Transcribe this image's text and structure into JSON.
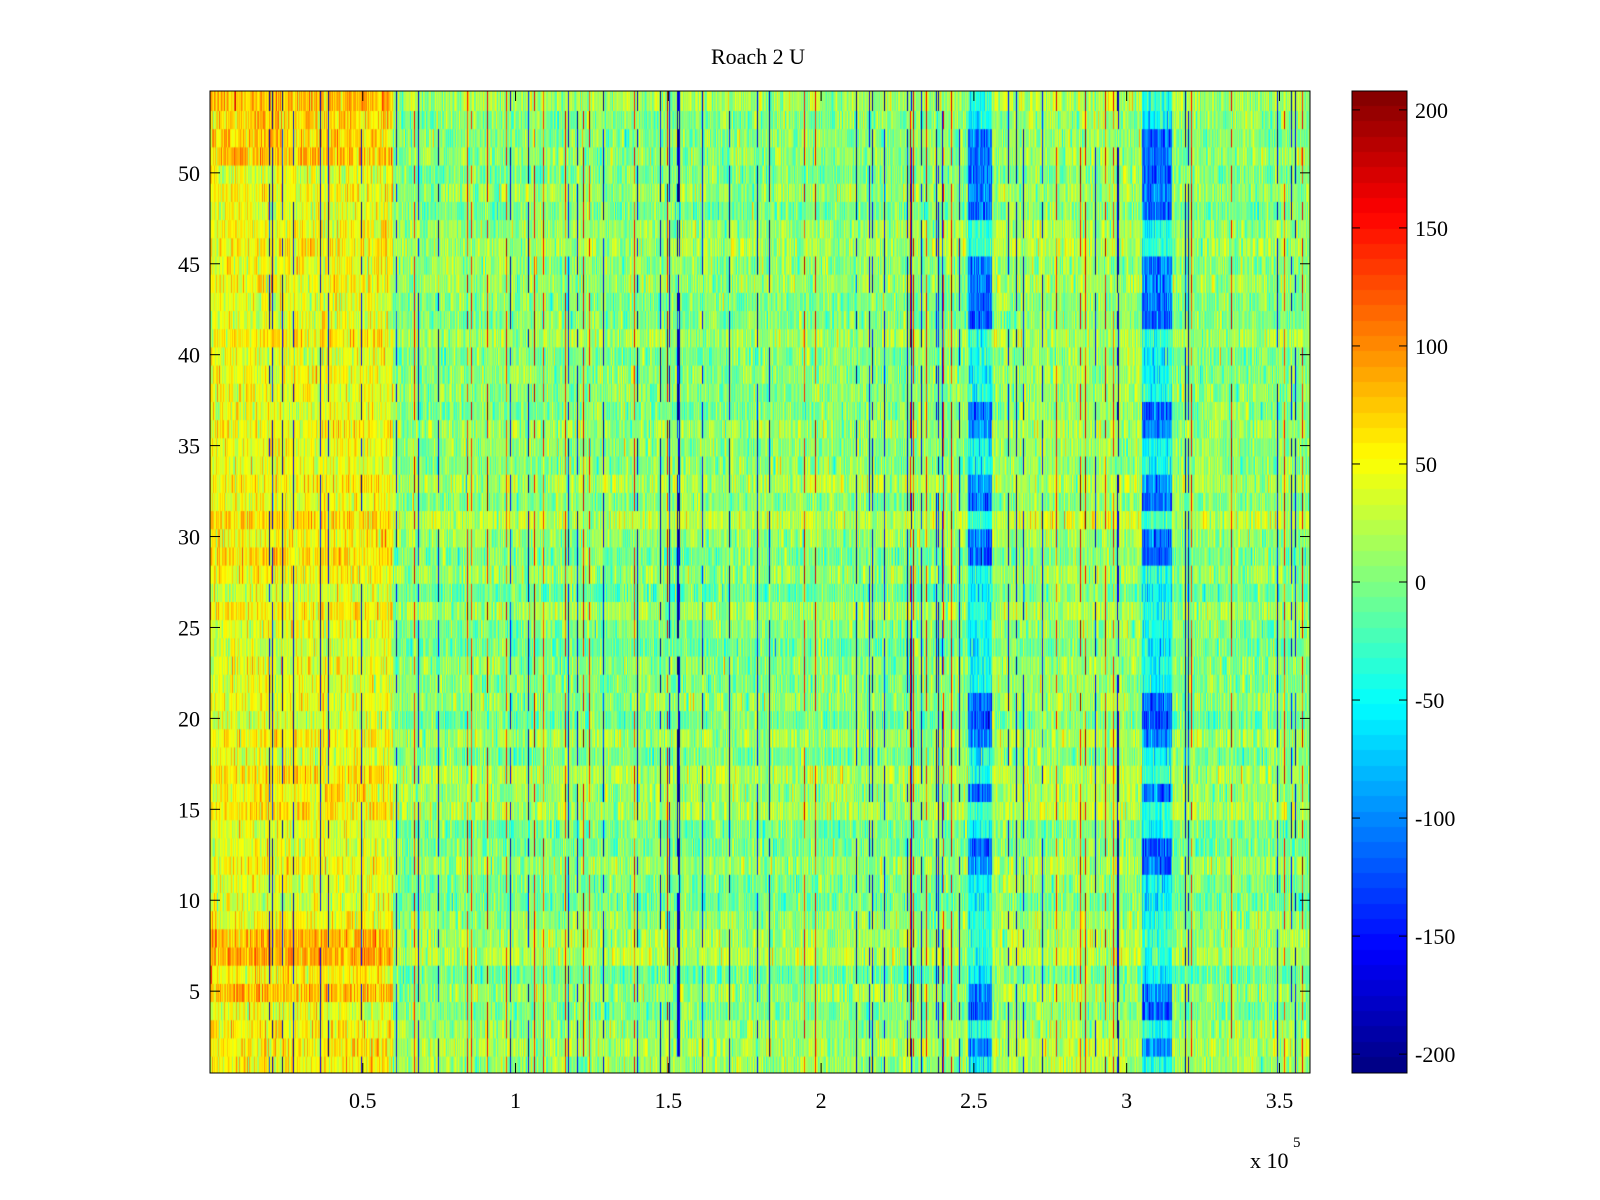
{
  "chart_data": {
    "type": "heatmap",
    "title": "Roach 2 U",
    "xlabel": "",
    "ylabel": "",
    "x_exponent_label": "x 10",
    "x_exponent_power": "5",
    "x_multiplier": 100000,
    "xlim": [
      0,
      3.6
    ],
    "ylim": [
      0.5,
      54.5
    ],
    "x_ticks": [
      {
        "value": 0.5,
        "label": "0.5"
      },
      {
        "value": 1,
        "label": "1"
      },
      {
        "value": 1.5,
        "label": "1.5"
      },
      {
        "value": 2,
        "label": "2"
      },
      {
        "value": 2.5,
        "label": "2.5"
      },
      {
        "value": 3,
        "label": "3"
      },
      {
        "value": 3.5,
        "label": "3.5"
      }
    ],
    "y_ticks": [
      {
        "value": 5,
        "label": "5"
      },
      {
        "value": 10,
        "label": "10"
      },
      {
        "value": 15,
        "label": "15"
      },
      {
        "value": 20,
        "label": "20"
      },
      {
        "value": 25,
        "label": "25"
      },
      {
        "value": 30,
        "label": "30"
      },
      {
        "value": 35,
        "label": "35"
      },
      {
        "value": 40,
        "label": "40"
      },
      {
        "value": 45,
        "label": "45"
      },
      {
        "value": 50,
        "label": "50"
      }
    ],
    "rows": 54,
    "colorbar": {
      "colormap": "jet",
      "clim": [
        -208,
        208
      ],
      "ticks": [
        {
          "value": 200,
          "label": "200"
        },
        {
          "value": 150,
          "label": "150"
        },
        {
          "value": 100,
          "label": "100"
        },
        {
          "value": 50,
          "label": "50"
        },
        {
          "value": 0,
          "label": "0"
        },
        {
          "value": -50,
          "label": "-50"
        },
        {
          "value": -100,
          "label": "-100"
        },
        {
          "value": -150,
          "label": "-150"
        },
        {
          "value": -200,
          "label": "-200"
        }
      ]
    },
    "regions": [
      {
        "x_range": [
          0,
          0.6
        ],
        "mean_value": 45
      },
      {
        "x_range": [
          0.6,
          2.48
        ],
        "mean_value": 5
      },
      {
        "x_range": [
          2.48,
          2.56
        ],
        "mean_value": -70
      },
      {
        "x_range": [
          2.56,
          3.05
        ],
        "mean_value": 12
      },
      {
        "x_range": [
          3.05,
          3.15
        ],
        "mean_value": -65
      },
      {
        "x_range": [
          3.15,
          3.6
        ],
        "mean_value": 5
      }
    ],
    "low_value_rows_at_bands": [
      2,
      4,
      5,
      12,
      13,
      16,
      19,
      20,
      21,
      29,
      30,
      32,
      33,
      36,
      37,
      42,
      43,
      44,
      45,
      48,
      49,
      50,
      51,
      52
    ],
    "grid": false
  }
}
